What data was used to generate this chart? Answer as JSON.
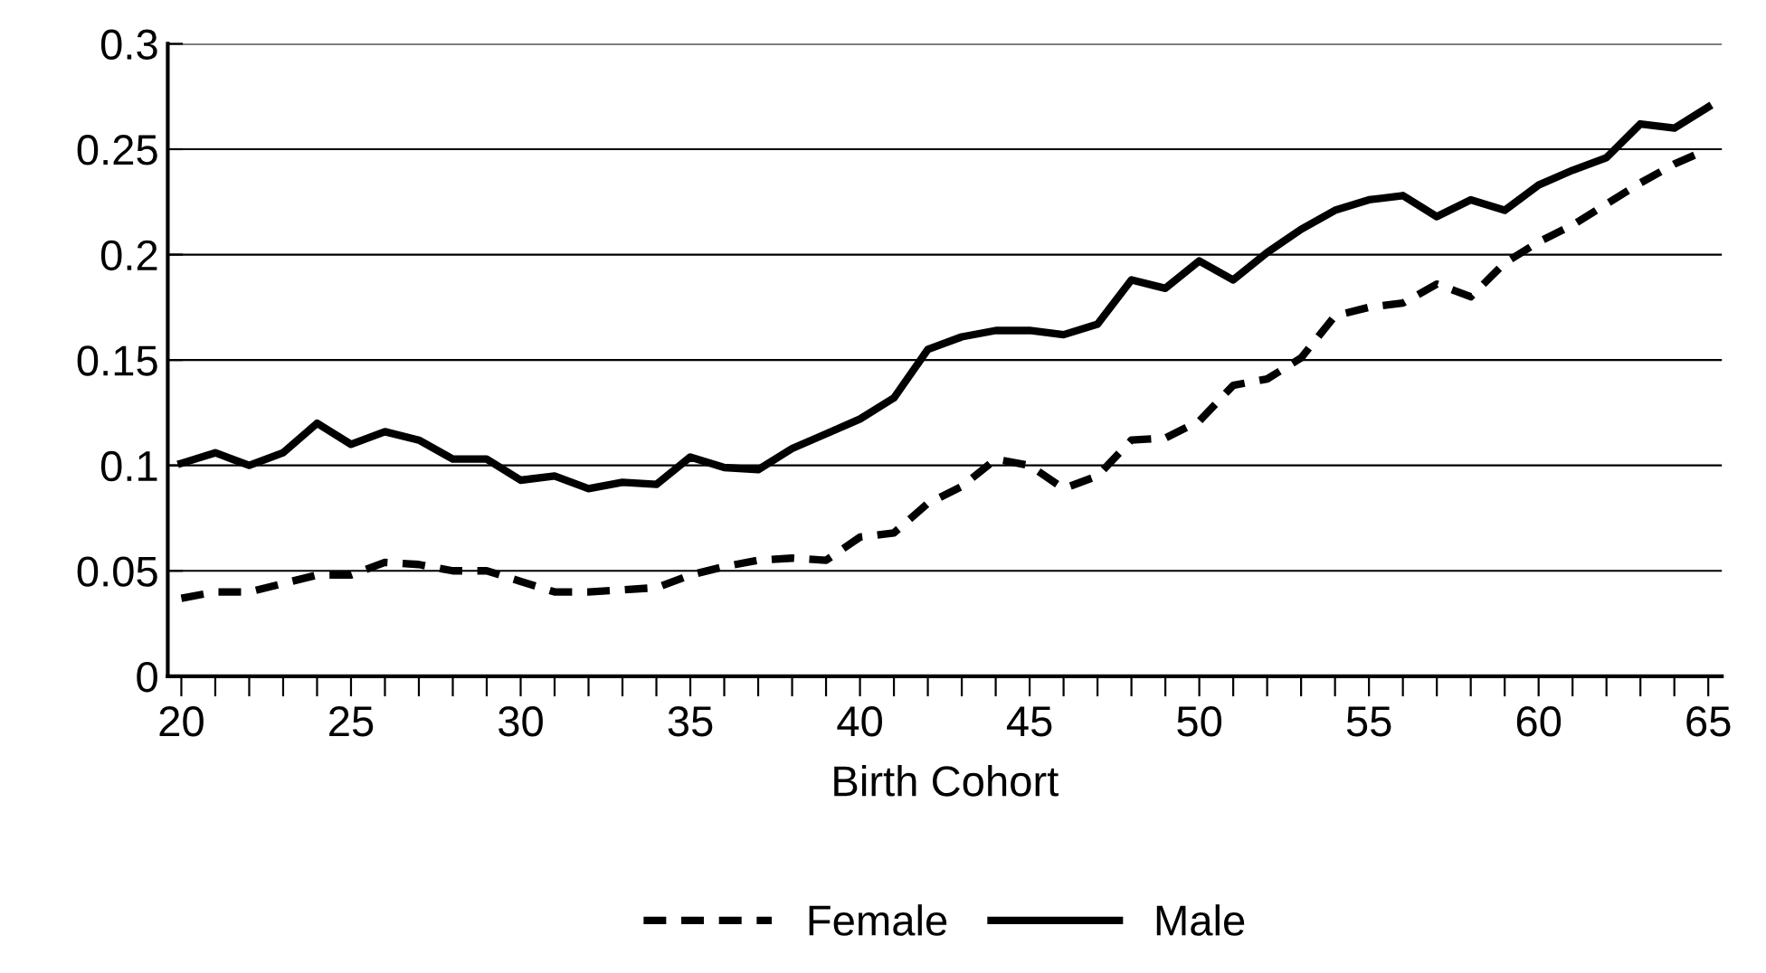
{
  "chart_data": {
    "type": "line",
    "xlabel": "Birth Cohort",
    "x": [
      20,
      21,
      22,
      23,
      24,
      25,
      26,
      27,
      28,
      29,
      30,
      31,
      32,
      33,
      34,
      35,
      36,
      37,
      38,
      39,
      40,
      41,
      42,
      43,
      44,
      45,
      46,
      47,
      48,
      49,
      50,
      51,
      52,
      53,
      54,
      55,
      56,
      57,
      58,
      59,
      60,
      61,
      62,
      63,
      64,
      65
    ],
    "series": [
      {
        "name": "Female",
        "color": "#000000",
        "line_style": "dashed",
        "values": [
          0.037,
          0.04,
          0.04,
          0.044,
          0.048,
          0.048,
          0.054,
          0.053,
          0.05,
          0.05,
          0.045,
          0.04,
          0.04,
          0.041,
          0.042,
          0.048,
          0.052,
          0.055,
          0.056,
          0.055,
          0.066,
          0.068,
          0.082,
          0.09,
          0.103,
          0.1,
          0.089,
          0.095,
          0.112,
          0.113,
          0.121,
          0.138,
          0.141,
          0.151,
          0.171,
          0.175,
          0.177,
          0.186,
          0.18,
          0.196,
          0.206,
          0.214,
          0.224,
          0.234,
          0.243,
          0.25
        ]
      },
      {
        "name": "Male",
        "color": "#000000",
        "line_style": "solid",
        "values": [
          0.101,
          0.106,
          0.1,
          0.106,
          0.12,
          0.11,
          0.116,
          0.112,
          0.103,
          0.103,
          0.093,
          0.095,
          0.089,
          0.092,
          0.091,
          0.104,
          0.099,
          0.098,
          0.108,
          0.115,
          0.122,
          0.132,
          0.155,
          0.161,
          0.164,
          0.164,
          0.162,
          0.167,
          0.188,
          0.184,
          0.197,
          0.188,
          0.201,
          0.212,
          0.221,
          0.226,
          0.228,
          0.218,
          0.226,
          0.221,
          0.233,
          0.24,
          0.246,
          0.262,
          0.26,
          0.27
        ]
      }
    ],
    "xlim": [
      19.6,
      65.4
    ],
    "xticks": [
      20,
      {
        "value": 21,
        "label": null
      },
      {
        "value": 22,
        "label": null
      },
      {
        "value": 23,
        "label": null
      },
      {
        "value": 24,
        "label": null
      },
      25,
      {
        "value": 26,
        "label": null
      },
      {
        "value": 27,
        "label": null
      },
      {
        "value": 28,
        "label": null
      },
      {
        "value": 29,
        "label": null
      },
      30,
      {
        "value": 31,
        "label": null
      },
      {
        "value": 32,
        "label": null
      },
      {
        "value": 33,
        "label": null
      },
      {
        "value": 34,
        "label": null
      },
      35,
      {
        "value": 36,
        "label": null
      },
      {
        "value": 37,
        "label": null
      },
      {
        "value": 38,
        "label": null
      },
      {
        "value": 39,
        "label": null
      },
      40,
      {
        "value": 41,
        "label": null
      },
      {
        "value": 42,
        "label": null
      },
      {
        "value": 43,
        "label": null
      },
      {
        "value": 44,
        "label": null
      },
      45,
      {
        "value": 46,
        "label": null
      },
      {
        "value": 47,
        "label": null
      },
      {
        "value": 48,
        "label": null
      },
      {
        "value": 49,
        "label": null
      },
      50,
      {
        "value": 51,
        "label": null
      },
      {
        "value": 52,
        "label": null
      },
      {
        "value": 53,
        "label": null
      },
      {
        "value": 54,
        "label": null
      },
      55,
      {
        "value": 56,
        "label": null
      },
      {
        "value": 57,
        "label": null
      },
      {
        "value": 58,
        "label": null
      },
      {
        "value": 59,
        "label": null
      },
      60,
      {
        "value": 61,
        "label": null
      },
      {
        "value": 62,
        "label": null
      },
      {
        "value": 63,
        "label": null
      },
      {
        "value": 64,
        "label": null
      },
      65
    ],
    "ylim": [
      0,
      0.3
    ],
    "yticks": [
      0,
      0.05,
      0.1,
      0.15,
      0.2,
      0.25,
      0.3
    ],
    "grid": "y",
    "legend": "bottom",
    "marker": "none"
  }
}
